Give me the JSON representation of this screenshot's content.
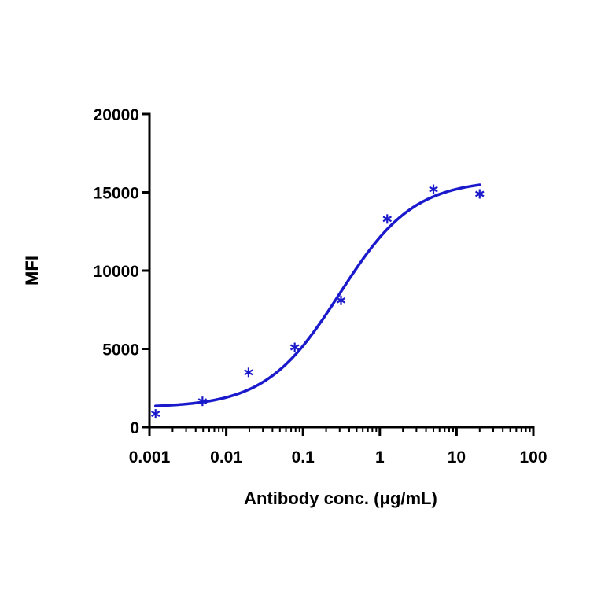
{
  "chart_data": {
    "type": "scatter",
    "title": "",
    "xlabel": "Antibody conc. (μg/mL)",
    "ylabel": "MFI",
    "xscale": "log",
    "xlim": [
      0.001,
      100
    ],
    "ylim": [
      0,
      20000
    ],
    "xticks": [
      0.001,
      0.01,
      0.1,
      1,
      10,
      100
    ],
    "xtick_labels": [
      "0.001",
      "0.01",
      "0.1",
      "1",
      "10",
      "100"
    ],
    "yticks": [
      0,
      5000,
      10000,
      15000,
      20000
    ],
    "ytick_labels": [
      "0",
      "5000",
      "10000",
      "15000",
      "20000"
    ],
    "grid": false,
    "legend": "none",
    "series": [
      {
        "marker": "asterisk",
        "color": "#1a1acc",
        "x": [
          0.0012,
          0.0049,
          0.0195,
          0.078,
          0.3125,
          1.25,
          5,
          20
        ],
        "y": [
          850,
          1650,
          3500,
          5100,
          8100,
          13300,
          15200,
          14900
        ]
      }
    ],
    "fit_curve": {
      "model": "4PL",
      "color": "#1a1acc",
      "bottom": 1250,
      "top": 15800,
      "ec50": 0.3,
      "hill": 0.9,
      "x_range": [
        0.0012,
        20
      ]
    }
  }
}
